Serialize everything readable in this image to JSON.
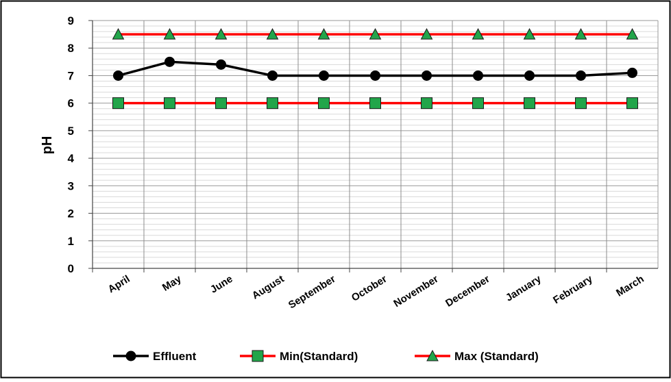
{
  "chart_data": {
    "type": "line",
    "title": "",
    "xlabel": "",
    "ylabel": "pH",
    "ylim": [
      0,
      9
    ],
    "ytick_step": 1,
    "minor_ytick_step": 0.2,
    "grid": true,
    "legend_position": "bottom",
    "categories": [
      "April",
      "May",
      "June",
      "August",
      "September",
      "October",
      "November",
      "December",
      "January",
      "February",
      "March"
    ],
    "series": [
      {
        "name": "Effluent",
        "marker": "circle",
        "line_color": "#000000",
        "marker_color": "#000000",
        "values": [
          7.0,
          7.5,
          7.4,
          7.0,
          7.0,
          7.0,
          7.0,
          7.0,
          7.0,
          7.0,
          7.1
        ]
      },
      {
        "name": "Min(Standard)",
        "marker": "square",
        "line_color": "#ff0000",
        "marker_color": "#22a54a",
        "values": [
          6,
          6,
          6,
          6,
          6,
          6,
          6,
          6,
          6,
          6,
          6
        ]
      },
      {
        "name": "Max (Standard)",
        "marker": "triangle",
        "line_color": "#ff0000",
        "marker_color": "#22a54a",
        "values": [
          8.5,
          8.5,
          8.5,
          8.5,
          8.5,
          8.5,
          8.5,
          8.5,
          8.5,
          8.5,
          8.5
        ]
      }
    ]
  }
}
